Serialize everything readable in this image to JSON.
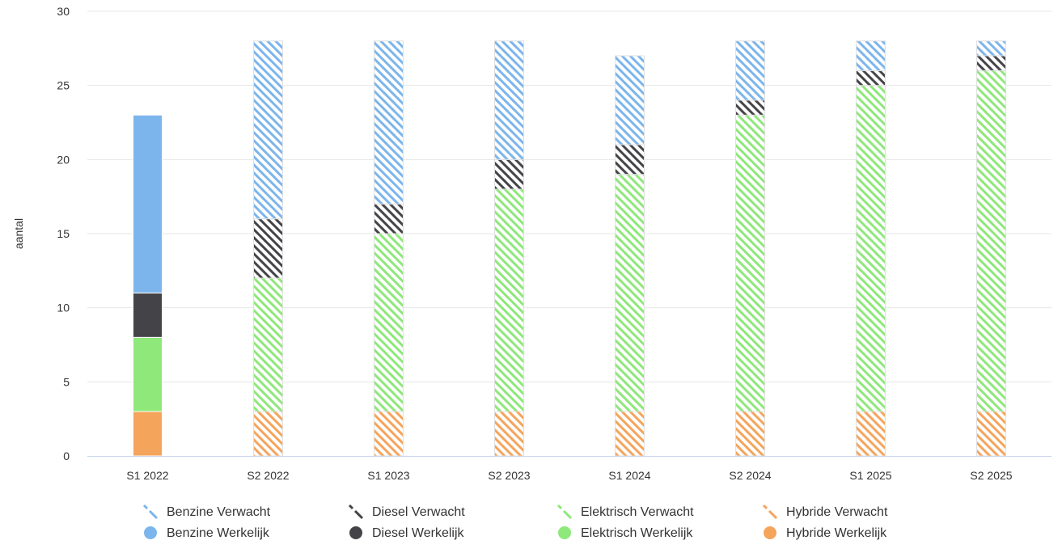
{
  "chart_data": {
    "type": "bar",
    "stacked": true,
    "title": "",
    "xlabel": "",
    "ylabel": "aantal",
    "ylim": [
      0,
      30
    ],
    "yticks": [
      0,
      5,
      10,
      15,
      20,
      25,
      30
    ],
    "grid": true,
    "legend_position": "bottom",
    "categories": [
      "S1 2022",
      "S2 2022",
      "S1 2023",
      "S2 2023",
      "S1 2024",
      "S2 2024",
      "S1 2025",
      "S2 2025"
    ],
    "series": [
      {
        "name": "Hybride Werkelijk",
        "color": "#f5a45b",
        "pattern": "solid",
        "values": [
          3,
          0,
          0,
          0,
          0,
          0,
          0,
          0
        ]
      },
      {
        "name": "Elektrisch Werkelijk",
        "color": "#8ee87a",
        "pattern": "solid",
        "values": [
          5,
          0,
          0,
          0,
          0,
          0,
          0,
          0
        ]
      },
      {
        "name": "Diesel Werkelijk",
        "color": "#444448",
        "pattern": "solid",
        "values": [
          3,
          0,
          0,
          0,
          0,
          0,
          0,
          0
        ]
      },
      {
        "name": "Benzine Werkelijk",
        "color": "#7cb5ec",
        "pattern": "solid",
        "values": [
          12,
          0,
          0,
          0,
          0,
          0,
          0,
          0
        ]
      },
      {
        "name": "Hybride Verwacht",
        "color": "#f5a45b",
        "pattern": "hatch",
        "values": [
          0,
          3,
          3,
          3,
          3,
          3,
          3,
          3
        ]
      },
      {
        "name": "Elektrisch Verwacht",
        "color": "#8ee87a",
        "pattern": "hatch",
        "values": [
          0,
          9,
          12,
          15,
          16,
          20,
          22,
          23
        ]
      },
      {
        "name": "Diesel Verwacht",
        "color": "#444448",
        "pattern": "hatch",
        "values": [
          0,
          4,
          2,
          2,
          2,
          1,
          1,
          1
        ]
      },
      {
        "name": "Benzine Verwacht",
        "color": "#7cb5ec",
        "pattern": "hatch",
        "values": [
          0,
          12,
          11,
          8,
          6,
          4,
          2,
          1
        ]
      }
    ],
    "legend": {
      "rows": [
        [
          "Benzine Verwacht",
          "Diesel Verwacht",
          "Elektrisch Verwacht",
          "Hybride Verwacht"
        ],
        [
          "Benzine Werkelijk",
          "Diesel Werkelijk",
          "Elektrisch Werkelijk",
          "Hybride Werkelijk"
        ]
      ]
    }
  }
}
